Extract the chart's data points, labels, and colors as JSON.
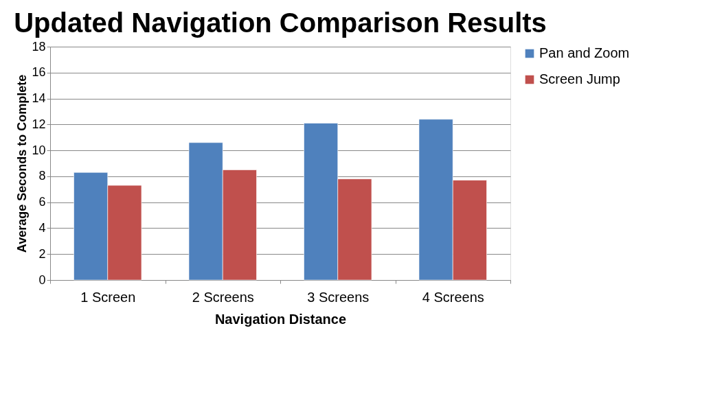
{
  "chart_data": {
    "type": "bar",
    "title": "Updated Navigation Comparison Results",
    "xlabel": "Navigation Distance",
    "ylabel": "Average Seconds to Complete",
    "categories": [
      "1 Screen",
      "2 Screens",
      "3 Screens",
      "4 Screens"
    ],
    "series": [
      {
        "name": "Pan and Zoom",
        "color": "#4f81bd",
        "values": [
          8.3,
          10.6,
          12.1,
          12.4
        ]
      },
      {
        "name": "Screen Jump",
        "color": "#c0504d",
        "values": [
          7.3,
          8.5,
          7.8,
          7.7
        ]
      }
    ],
    "ylim": [
      0,
      18
    ],
    "yticks": [
      0,
      2,
      4,
      6,
      8,
      10,
      12,
      14,
      16,
      18
    ],
    "grid": "y",
    "legend": "right"
  }
}
